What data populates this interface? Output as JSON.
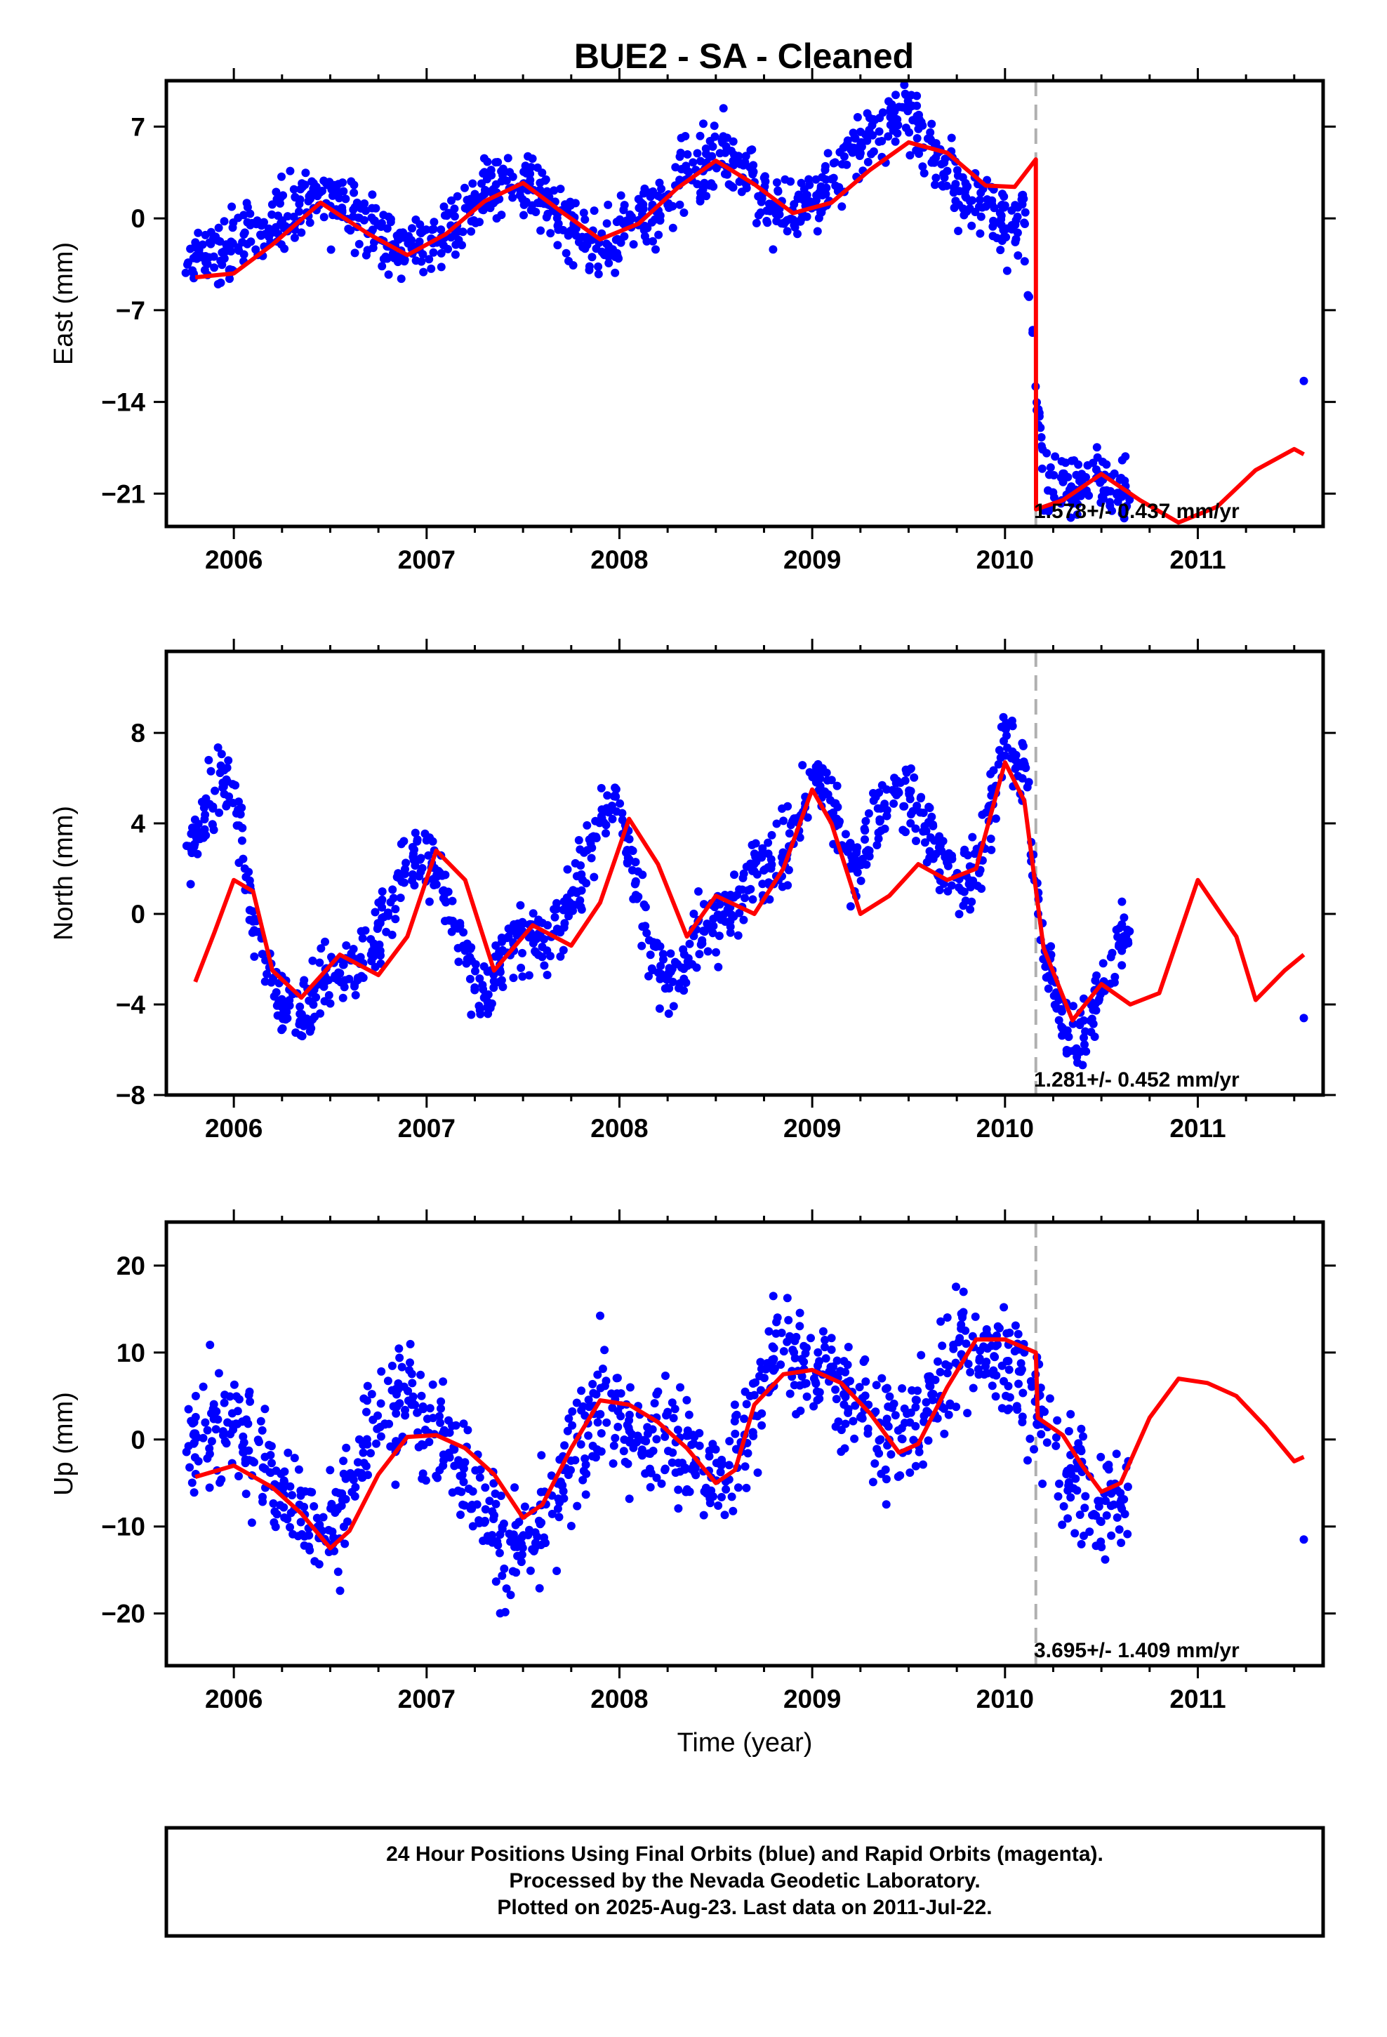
{
  "title": "BUE2  - SA - Cleaned",
  "footer": {
    "lines": [
      "24 Hour Positions Using Final Orbits (blue) and Rapid Orbits (magenta).",
      "Processed by the Nevada Geodetic Laboratory.",
      "Plotted on 2025-Aug-23. Last data on 2011-Jul-22."
    ]
  },
  "colors": {
    "data": "#0000ff",
    "model": "#ff0000",
    "step_line": "#b0b0b0",
    "frame": "#000000"
  },
  "chart_data": [
    {
      "type": "scatter",
      "ylabel": "East (mm)",
      "xlabel": "",
      "xlim": [
        2005.65,
        2011.65
      ],
      "ylim": [
        -23.5,
        10.5
      ],
      "xticks": [
        2006,
        2007,
        2008,
        2009,
        2010,
        2011
      ],
      "xtick_labels": [
        "2006",
        "2007",
        "2008",
        "2009",
        "2010",
        "2011"
      ],
      "yticks": [
        7,
        0,
        -7,
        -14,
        -21
      ],
      "ytick_labels": [
        "7",
        "0",
        "−7",
        "−14",
        "−21"
      ],
      "annotation": "1.578+/- 0.437 mm/yr",
      "step_epoch": 2010.16,
      "series": [
        {
          "role": "data",
          "x": [
            2005.8,
            2005.9,
            2006.0,
            2006.1,
            2006.2,
            2006.3,
            2006.4,
            2006.5,
            2006.6,
            2006.7,
            2006.8,
            2006.9,
            2007.0,
            2007.1,
            2007.2,
            2007.3,
            2007.4,
            2007.5,
            2007.6,
            2007.7,
            2007.8,
            2007.9,
            2008.0,
            2008.1,
            2008.2,
            2008.3,
            2008.4,
            2008.5,
            2008.6,
            2008.7,
            2008.8,
            2008.9,
            2009.0,
            2009.1,
            2009.2,
            2009.3,
            2009.4,
            2009.5,
            2009.6,
            2009.7,
            2009.8,
            2009.9,
            2010.0,
            2010.1,
            2010.2,
            2010.3,
            2010.4,
            2010.5,
            2010.6,
            2011.55
          ],
          "y": [
            -3.2,
            -3.0,
            -2.1,
            -1.4,
            -0.2,
            0.8,
            1.6,
            1.7,
            1.0,
            -0.4,
            -1.9,
            -2.4,
            -1.9,
            -1.0,
            0.2,
            1.5,
            2.4,
            2.5,
            1.7,
            0.2,
            -1.3,
            -2.2,
            -1.4,
            -0.2,
            1.2,
            2.6,
            4.2,
            5.2,
            4.4,
            2.3,
            0.7,
            0.3,
            1.4,
            2.8,
            4.8,
            6.6,
            7.9,
            7.7,
            6.0,
            3.6,
            1.6,
            0.9,
            0.3,
            -0.3,
            -19.5,
            -20.3,
            -20.6,
            -20.0,
            -21.3,
            -12.4
          ]
        },
        {
          "role": "model",
          "x": [
            2005.8,
            2006.0,
            2006.2,
            2006.45,
            2006.7,
            2006.9,
            2007.1,
            2007.3,
            2007.5,
            2007.7,
            2007.9,
            2008.1,
            2008.3,
            2008.5,
            2008.7,
            2008.9,
            2009.1,
            2009.3,
            2009.5,
            2009.7,
            2009.9,
            2010.05,
            2010.16,
            2010.161,
            2010.3,
            2010.5,
            2010.7,
            2010.9,
            2011.1,
            2011.3,
            2011.5,
            2011.55
          ],
          "y": [
            -4.5,
            -4.2,
            -2.0,
            1.2,
            -1.2,
            -2.8,
            -1.2,
            1.3,
            2.7,
            0.5,
            -1.6,
            -0.4,
            2.3,
            4.4,
            2.6,
            0.4,
            1.2,
            3.7,
            5.8,
            5.0,
            2.5,
            2.4,
            4.5,
            -22.2,
            -21.5,
            -19.5,
            -21.5,
            -23.2,
            -22.0,
            -19.2,
            -17.6,
            -18.0
          ]
        }
      ]
    },
    {
      "type": "scatter",
      "ylabel": "North (mm)",
      "xlabel": "",
      "xlim": [
        2005.65,
        2011.65
      ],
      "ylim": [
        -8,
        11.6
      ],
      "xticks": [
        2006,
        2007,
        2008,
        2009,
        2010,
        2011
      ],
      "xtick_labels": [
        "2006",
        "2007",
        "2008",
        "2009",
        "2010",
        "2011"
      ],
      "yticks": [
        8,
        4,
        0,
        -4,
        -8
      ],
      "ytick_labels": [
        "8",
        "4",
        "0",
        "−4",
        "−8"
      ],
      "annotation": "1.281+/- 0.452 mm/yr",
      "step_epoch": 2010.16,
      "series": [
        {
          "role": "data",
          "x": [
            2005.8,
            2005.9,
            2006.0,
            2006.1,
            2006.2,
            2006.3,
            2006.4,
            2006.5,
            2006.6,
            2006.7,
            2006.8,
            2006.9,
            2007.0,
            2007.1,
            2007.2,
            2007.3,
            2007.4,
            2007.5,
            2007.6,
            2007.7,
            2007.8,
            2007.9,
            2008.0,
            2008.1,
            2008.2,
            2008.3,
            2008.4,
            2008.5,
            2008.6,
            2008.7,
            2008.8,
            2008.9,
            2009.0,
            2009.1,
            2009.2,
            2009.3,
            2009.4,
            2009.5,
            2009.6,
            2009.7,
            2009.8,
            2009.9,
            2010.0,
            2010.1,
            2010.2,
            2010.3,
            2010.4,
            2010.5,
            2010.6,
            2011.55
          ],
          "y": [
            2.8,
            5.8,
            5.6,
            -0.5,
            -3.0,
            -4.5,
            -4.0,
            -2.5,
            -2.8,
            -1.8,
            0.3,
            2.2,
            2.5,
            1.0,
            -2.0,
            -3.5,
            -1.5,
            -1.0,
            -1.5,
            -0.2,
            1.8,
            4.0,
            5.0,
            1.0,
            -2.5,
            -3.0,
            -0.8,
            -0.5,
            0.3,
            2.5,
            2.0,
            3.5,
            6.0,
            5.0,
            2.0,
            3.5,
            5.0,
            5.5,
            3.5,
            2.0,
            1.5,
            3.0,
            8.0,
            6.5,
            -1.5,
            -5.0,
            -5.5,
            -3.5,
            -1.0,
            -4.6
          ]
        },
        {
          "role": "model",
          "x": [
            2005.8,
            2005.9,
            2006.0,
            2006.1,
            2006.2,
            2006.35,
            2006.55,
            2006.75,
            2006.9,
            2007.05,
            2007.2,
            2007.35,
            2007.55,
            2007.75,
            2007.9,
            2008.05,
            2008.2,
            2008.35,
            2008.5,
            2008.7,
            2008.85,
            2009.0,
            2009.1,
            2009.25,
            2009.4,
            2009.55,
            2009.7,
            2009.85,
            2010.0,
            2010.1,
            2010.2,
            2010.35,
            2010.5,
            2010.65,
            2010.8,
            2011.0,
            2011.2,
            2011.3,
            2011.45,
            2011.55
          ],
          "y": [
            -3.0,
            -0.8,
            1.5,
            1.0,
            -2.5,
            -3.7,
            -1.8,
            -2.7,
            -1.0,
            2.8,
            1.5,
            -2.5,
            -0.5,
            -1.4,
            0.5,
            4.2,
            2.2,
            -1.0,
            0.8,
            0.0,
            2.0,
            5.5,
            4.0,
            0.0,
            0.8,
            2.2,
            1.5,
            2.0,
            6.7,
            5.0,
            -1.5,
            -4.7,
            -3.1,
            -4.0,
            -3.5,
            1.5,
            -1.0,
            -3.8,
            -2.5,
            -1.8
          ]
        }
      ]
    },
    {
      "type": "scatter",
      "ylabel": "Up (mm)",
      "xlabel": "Time (year)",
      "xlim": [
        2005.65,
        2011.65
      ],
      "ylim": [
        -26,
        25
      ],
      "xticks": [
        2006,
        2007,
        2008,
        2009,
        2010,
        2011
      ],
      "xtick_labels": [
        "2006",
        "2007",
        "2008",
        "2009",
        "2010",
        "2011"
      ],
      "yticks": [
        20,
        10,
        0,
        -10,
        -20
      ],
      "ytick_labels": [
        "20",
        "10",
        "0",
        "−10",
        "−20"
      ],
      "annotation": "3.695+/- 1.409 mm/yr",
      "step_epoch": 2010.16,
      "series": [
        {
          "role": "data",
          "x": [
            2005.8,
            2005.9,
            2006.0,
            2006.1,
            2006.2,
            2006.3,
            2006.4,
            2006.5,
            2006.6,
            2006.7,
            2006.8,
            2006.9,
            2007.0,
            2007.1,
            2007.2,
            2007.3,
            2007.4,
            2007.5,
            2007.6,
            2007.7,
            2007.8,
            2007.9,
            2008.0,
            2008.1,
            2008.2,
            2008.3,
            2008.4,
            2008.5,
            2008.6,
            2008.7,
            2008.8,
            2008.9,
            2009.0,
            2009.1,
            2009.2,
            2009.3,
            2009.4,
            2009.5,
            2009.6,
            2009.7,
            2009.8,
            2009.9,
            2010.0,
            2010.1,
            2010.2,
            2010.3,
            2010.4,
            2010.5,
            2010.6,
            2011.55
          ],
          "y": [
            0.5,
            2.0,
            1.0,
            -1.0,
            -4.0,
            -7.0,
            -9.0,
            -10.0,
            -6.0,
            0.0,
            4.0,
            5.0,
            3.0,
            0.0,
            -3.0,
            -8.0,
            -12.0,
            -13.0,
            -11.0,
            -6.0,
            0.0,
            4.0,
            2.0,
            -1.0,
            1.0,
            0.0,
            -3.0,
            -6.0,
            -2.0,
            4.0,
            9.0,
            10.0,
            8.0,
            7.0,
            5.0,
            3.0,
            1.0,
            1.0,
            4.0,
            8.0,
            11.0,
            10.0,
            9.0,
            7.0,
            2.0,
            -3.0,
            -6.0,
            -8.0,
            -6.0,
            -11.5
          ]
        },
        {
          "role": "model",
          "x": [
            2005.8,
            2006.0,
            2006.2,
            2006.35,
            2006.5,
            2006.6,
            2006.75,
            2006.9,
            2007.05,
            2007.2,
            2007.35,
            2007.5,
            2007.6,
            2007.75,
            2007.9,
            2008.05,
            2008.2,
            2008.35,
            2008.5,
            2008.6,
            2008.7,
            2008.85,
            2009.0,
            2009.15,
            2009.3,
            2009.45,
            2009.55,
            2009.7,
            2009.85,
            2010.0,
            2010.16,
            2010.17,
            2010.3,
            2010.4,
            2010.5,
            2010.6,
            2010.75,
            2010.9,
            2011.05,
            2011.2,
            2011.35,
            2011.5,
            2011.55
          ],
          "y": [
            -4.3,
            -3.0,
            -5.5,
            -8.5,
            -12.5,
            -10.5,
            -4.0,
            0.3,
            0.5,
            -1.0,
            -4.0,
            -9.0,
            -7.5,
            -1.0,
            4.5,
            4.0,
            2.0,
            -1.0,
            -5.0,
            -3.5,
            4.0,
            7.5,
            8.0,
            6.5,
            3.0,
            -1.5,
            -0.5,
            6.0,
            11.5,
            11.5,
            10.0,
            2.5,
            0.5,
            -3.0,
            -6.0,
            -5.0,
            2.5,
            7.0,
            6.5,
            5.0,
            1.5,
            -2.5,
            -2.0
          ]
        }
      ]
    }
  ]
}
